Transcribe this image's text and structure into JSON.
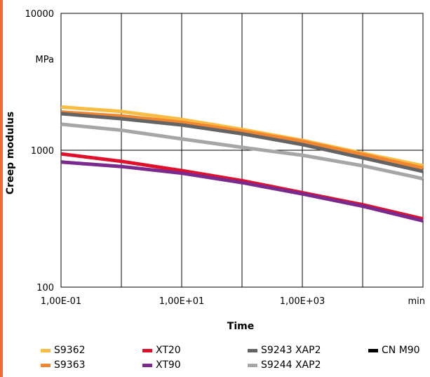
{
  "colors": {
    "accent_bar": "#f26a2e"
  },
  "chart_data": {
    "type": "line",
    "title": "",
    "xlabel": "Time",
    "ylabel": "Creep modulus",
    "x_scale": "log",
    "y_scale": "log",
    "xlim": [
      0.1,
      100000
    ],
    "ylim": [
      100,
      10000
    ],
    "x_tick_labels": [
      {
        "value": 0.1,
        "label": "1,00E-01"
      },
      {
        "value": 10,
        "label": "1,00E+01"
      },
      {
        "value": 1000,
        "label": "1,00E+03"
      },
      {
        "value": 100000,
        "label": "min"
      }
    ],
    "x_gridlines": [
      0.1,
      1,
      10,
      100,
      1000,
      10000,
      100000
    ],
    "y_tick_labels": [
      {
        "value": 10000,
        "label": "10000"
      },
      {
        "value": 4642,
        "label": "MPa"
      },
      {
        "value": 1000,
        "label": "1000"
      },
      {
        "value": 100,
        "label": "100"
      }
    ],
    "y_gridlines": [
      10000,
      1000,
      100
    ],
    "grid": true,
    "legend_position": "bottom",
    "series": [
      {
        "name": "S9362",
        "color": "#f9bc42",
        "x": [
          0.1,
          1,
          10,
          100,
          1000,
          10000,
          100000
        ],
        "y": [
          2070,
          1920,
          1680,
          1420,
          1180,
          950,
          770
        ]
      },
      {
        "name": "S9363",
        "color": "#f0862f",
        "x": [
          0.1,
          1,
          10,
          100,
          1000,
          10000,
          100000
        ],
        "y": [
          1900,
          1780,
          1600,
          1380,
          1160,
          930,
          740
        ]
      },
      {
        "name": "XT20",
        "color": "#e0102b",
        "x": [
          0.1,
          1,
          10,
          100,
          1000,
          10000,
          100000
        ],
        "y": [
          940,
          830,
          710,
          600,
          490,
          400,
          315
        ]
      },
      {
        "name": "XT90",
        "color": "#7a2a8c",
        "x": [
          0.1,
          1,
          10,
          100,
          1000,
          10000,
          100000
        ],
        "y": [
          820,
          760,
          680,
          580,
          480,
          390,
          305
        ]
      },
      {
        "name": "S9243 XAP2",
        "color": "#646464",
        "x": [
          0.1,
          1,
          10,
          100,
          1000,
          10000,
          100000
        ],
        "y": [
          1850,
          1700,
          1530,
          1320,
          1100,
          880,
          700
        ]
      },
      {
        "name": "S9244 XAP2",
        "color": "#a6a6a6",
        "x": [
          0.1,
          1,
          10,
          100,
          1000,
          10000,
          100000
        ],
        "y": [
          1550,
          1400,
          1210,
          1050,
          920,
          770,
          620
        ]
      },
      {
        "name": "CN M90",
        "color": "#000000",
        "x": [],
        "y": []
      }
    ]
  }
}
